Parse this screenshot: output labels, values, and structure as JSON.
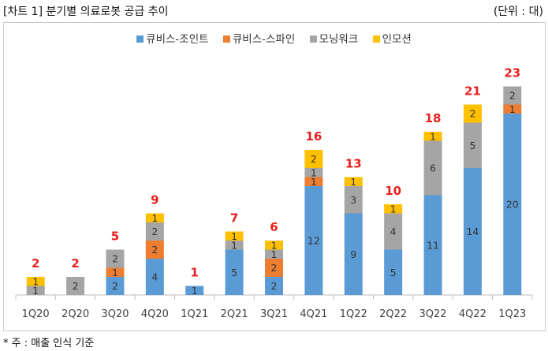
{
  "header": {
    "title": "[차트 1] 분기별 의료로봇 공급 추이",
    "unit": "(단위 : 대)"
  },
  "footer": {
    "note": "* 주 : 매출 인식 기준"
  },
  "colors": {
    "series": [
      "#5b9bd5",
      "#ed7d31",
      "#a5a5a5",
      "#ffc000"
    ],
    "total_label": "#e8201e"
  },
  "chart_data": {
    "type": "bar",
    "stacked": true,
    "title": "",
    "xlabel": "",
    "ylabel": "",
    "legend_position": "top",
    "categories": [
      "1Q20",
      "2Q20",
      "3Q20",
      "4Q20",
      "1Q21",
      "2Q21",
      "3Q21",
      "4Q21",
      "1Q22",
      "2Q22",
      "3Q22",
      "4Q22",
      "1Q23"
    ],
    "series": [
      {
        "name": "큐비스-조인트",
        "values": [
          0,
          0,
          2,
          4,
          1,
          5,
          2,
          12,
          9,
          5,
          11,
          14,
          20
        ]
      },
      {
        "name": "큐비스-스파인",
        "values": [
          0,
          0,
          1,
          2,
          0,
          0,
          2,
          1,
          0,
          0,
          0,
          0,
          1
        ]
      },
      {
        "name": "모닝워크",
        "values": [
          1,
          2,
          2,
          2,
          0,
          1,
          1,
          1,
          3,
          4,
          6,
          5,
          2
        ]
      },
      {
        "name": "인모션",
        "values": [
          1,
          0,
          0,
          1,
          0,
          1,
          1,
          2,
          1,
          1,
          1,
          2,
          0
        ]
      }
    ],
    "totals": [
      2,
      2,
      5,
      9,
      1,
      7,
      6,
      16,
      13,
      10,
      18,
      21,
      23
    ],
    "ylim": [
      0,
      23
    ],
    "grid": false
  }
}
